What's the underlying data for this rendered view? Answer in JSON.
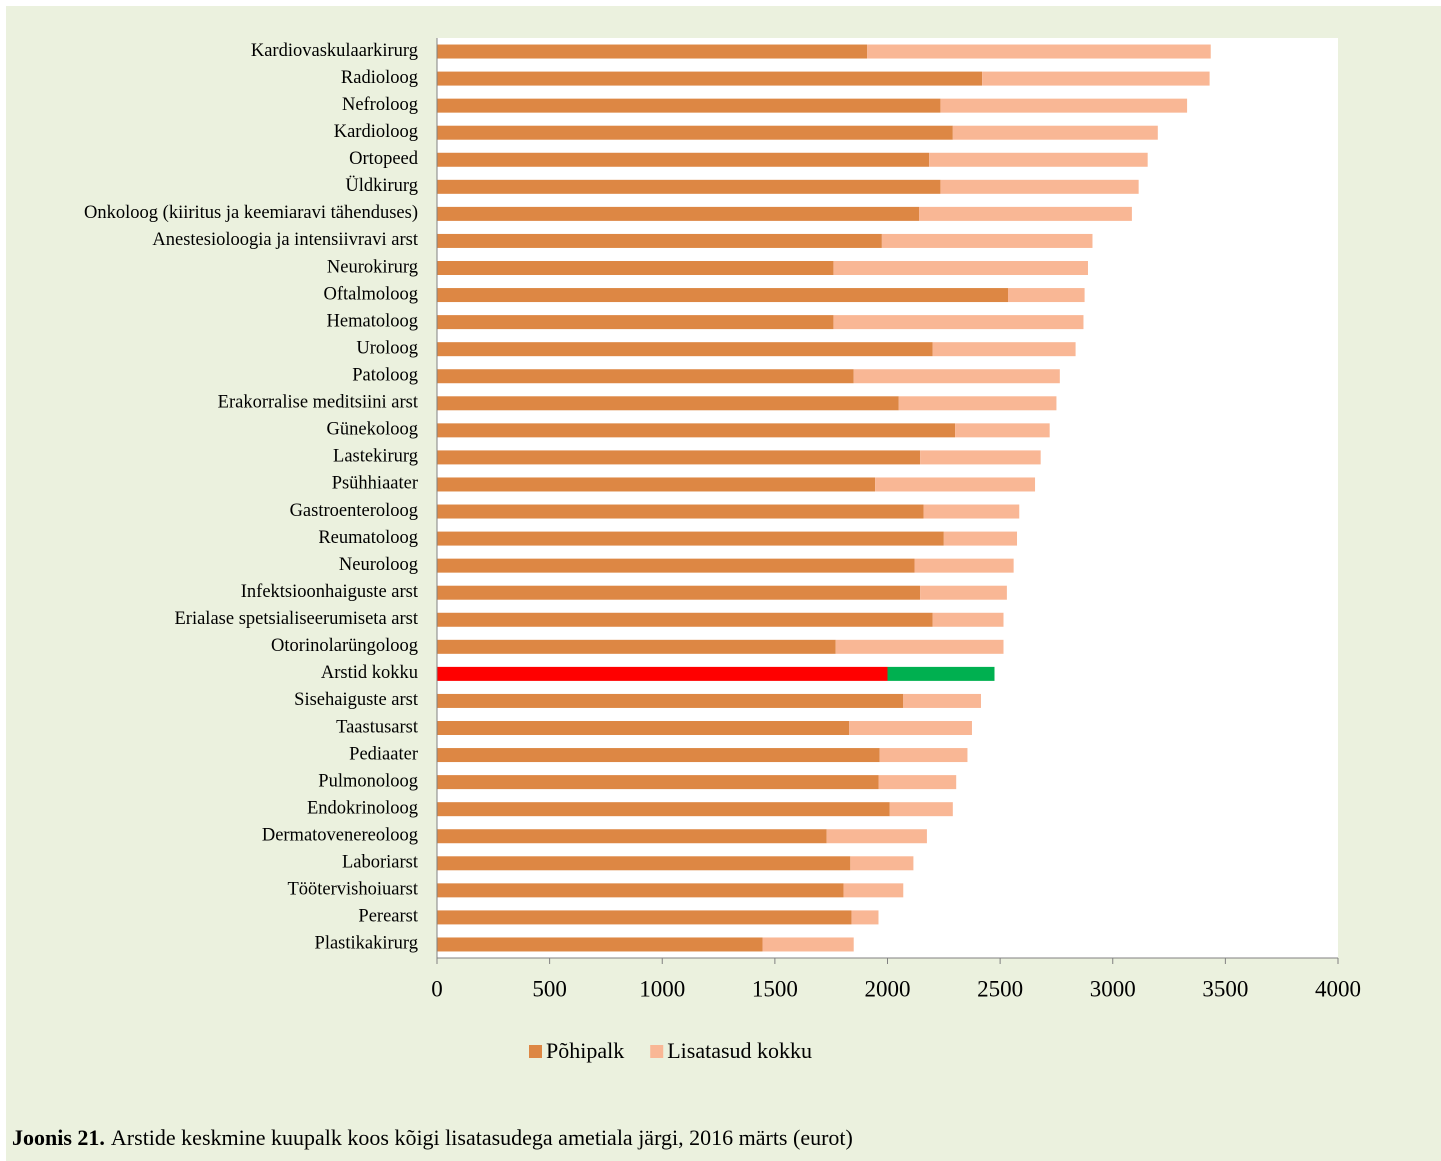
{
  "chart_data": {
    "type": "stacked_barh",
    "caption_label": "Joonis 21.",
    "caption": "Arstide keskmine kuupalk koos kõigi lisatasudega ametiala järgi, 2016 märts (eurot)",
    "categories": [
      "Kardiovaskulaarkirurg",
      "Radioloog",
      "Nefroloog",
      "Kardioloog",
      "Ortopeed",
      "Üldkirurg",
      "Onkoloog (kiiritus ja keemiaravi tähenduses)",
      "Anestesioloogia ja intensiivravi arst",
      "Neurokirurg",
      "Oftalmoloog",
      "Hematoloog",
      "Uroloog",
      "Patoloog",
      "Erakorralise meditsiini arst",
      "Günekoloog",
      "Lastekirurg",
      "Psühhiaater",
      "Gastroenteroloog",
      "Reumatoloog",
      "Neuroloog",
      "Infektsioonhaiguste arst",
      "Erialase spetsialiseerumiseta arst",
      "Otorinolarüngoloog",
      "Arstid kokku",
      "Sisehaiguste arst",
      "Taastusarst",
      "Pediaater",
      "Pulmonoloog",
      "Endokrinoloog",
      "Dermatovenereoloog",
      "Laboriarst",
      "Töötervishoiuarst",
      "Perearst",
      "Plastikakirurg"
    ],
    "series": [
      {
        "name": "Põhipalk",
        "color": "#dd8744",
        "values": [
          1910,
          2420,
          2235,
          2290,
          2185,
          2235,
          2140,
          1975,
          1760,
          2535,
          1760,
          2200,
          1850,
          2050,
          2300,
          2145,
          1945,
          2160,
          2250,
          2120,
          2145,
          2200,
          1770,
          2000,
          2070,
          1830,
          1965,
          1960,
          2010,
          1730,
          1835,
          1805,
          1840,
          1445
        ]
      },
      {
        "name": "Lisatasud kokku",
        "color": "#f9b795",
        "values": [
          1525,
          1010,
          1095,
          910,
          970,
          880,
          945,
          935,
          1130,
          340,
          1110,
          635,
          915,
          700,
          420,
          535,
          710,
          425,
          325,
          440,
          385,
          315,
          745,
          475,
          345,
          545,
          390,
          345,
          280,
          445,
          280,
          265,
          120,
          405
        ]
      }
    ],
    "highlight_category": "Arstid kokku",
    "highlight_colors": [
      "#ff0000",
      "#00b050"
    ],
    "xlim": [
      0,
      4000
    ],
    "xticks": [
      0,
      500,
      1000,
      1500,
      2000,
      2500,
      3000,
      3500,
      4000
    ],
    "grid": false,
    "legend": "bottom"
  }
}
